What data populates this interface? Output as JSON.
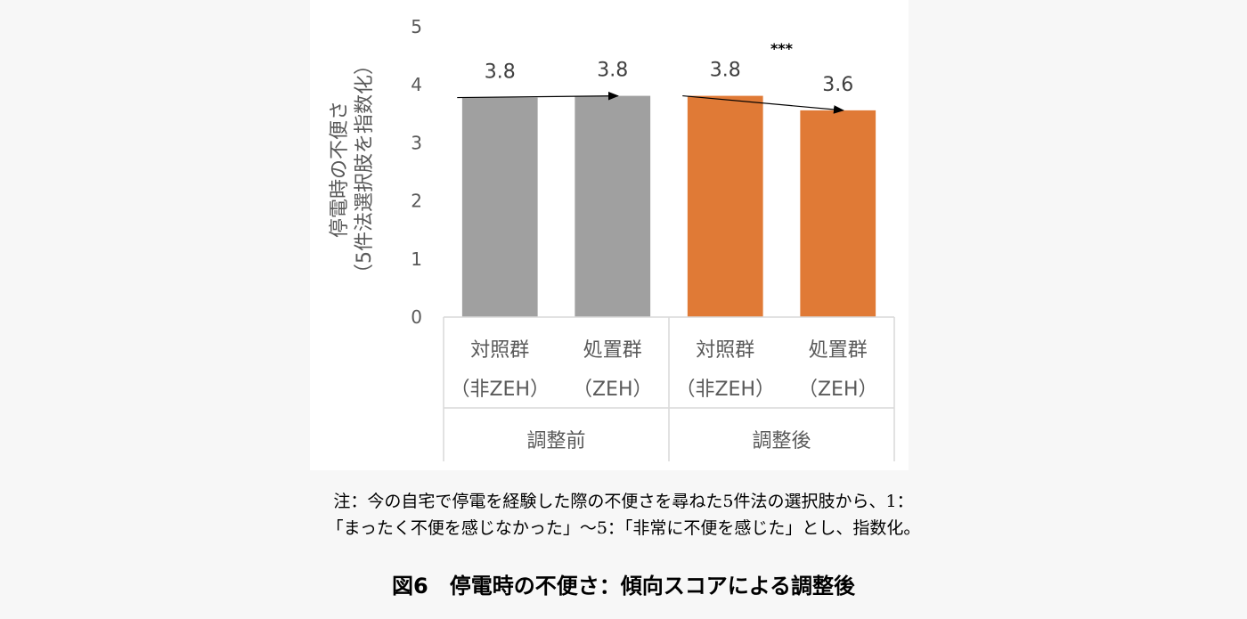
{
  "chart_data": {
    "type": "bar",
    "ylabel_line1": "停電時の不便さ",
    "ylabel_line2": "（5件法選択肢を指数化）",
    "ylim": [
      0,
      5
    ],
    "yticks": [
      "0",
      "1",
      "2",
      "3",
      "4",
      "5"
    ],
    "groups": [
      {
        "label": "調整前",
        "categories": [
          {
            "line1": "対照群",
            "line2": "（非ZEH）",
            "value": 3.78,
            "label": "3.8",
            "color": "#a0a0a0"
          },
          {
            "line1": "処置群",
            "line2": "（ZEH）",
            "value": 3.81,
            "label": "3.8",
            "color": "#a0a0a0"
          }
        ]
      },
      {
        "label": "調整後",
        "categories": [
          {
            "line1": "対照群",
            "line2": "（非ZEH）",
            "value": 3.81,
            "label": "3.8",
            "color": "#e07a36"
          },
          {
            "line1": "処置群",
            "line2": "（ZEH）",
            "value": 3.56,
            "label": "3.6",
            "color": "#e07a36"
          }
        ]
      }
    ],
    "significance": "***",
    "grid": false,
    "legend": "none"
  },
  "note": {
    "line1": "注：今の自宅で停電を経験した際の不便さを尋ねた5件法の選択肢から、1：",
    "line2": "「まったく不便を感じなかった」〜5：「非常に不便を感じた」とし、指数化。"
  },
  "caption": "図6　停電時の不便さ：傾向スコアによる調整後"
}
